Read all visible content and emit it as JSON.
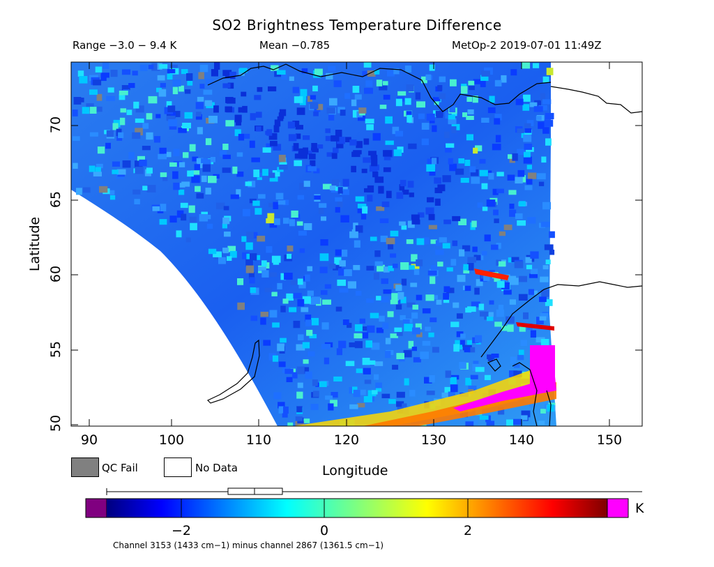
{
  "title": "SO2 Brightness Temperature Difference",
  "header": {
    "range": "Range −3.0 − 9.4 K",
    "mean": "Mean −0.785",
    "satellite_time": "MetOp-2 2019-07-01 11:49Z"
  },
  "axes": {
    "x_title": "Longitude",
    "y_title": "Latitude",
    "x_ticks": [
      "90",
      "100",
      "110",
      "120",
      "130",
      "140",
      "150"
    ],
    "y_ticks": [
      "70",
      "65",
      "60",
      "55",
      "50"
    ],
    "x_range": [
      88.5,
      154
    ],
    "y_range": [
      49.5,
      74
    ]
  },
  "legend": {
    "qc_fail": "QC Fail",
    "no_data": "No Data",
    "qc_fail_color": "#808080",
    "no_data_color": "#ffffff"
  },
  "colorbar": {
    "ticks": [
      "−2",
      "0",
      "2"
    ],
    "unit": "K",
    "under_color": "#800080",
    "over_color": "#ff00ff",
    "range": [
      -3.0,
      4.0
    ]
  },
  "footnote": "Channel 3153 (1433 cm−1) minus channel 2867 (1361.5 cm−1)",
  "map": {
    "swath_dominant_color": "#1e6fff",
    "plume_colors": [
      "#ffff00",
      "#ff8000",
      "#ff0000",
      "#ff00ff"
    ]
  }
}
